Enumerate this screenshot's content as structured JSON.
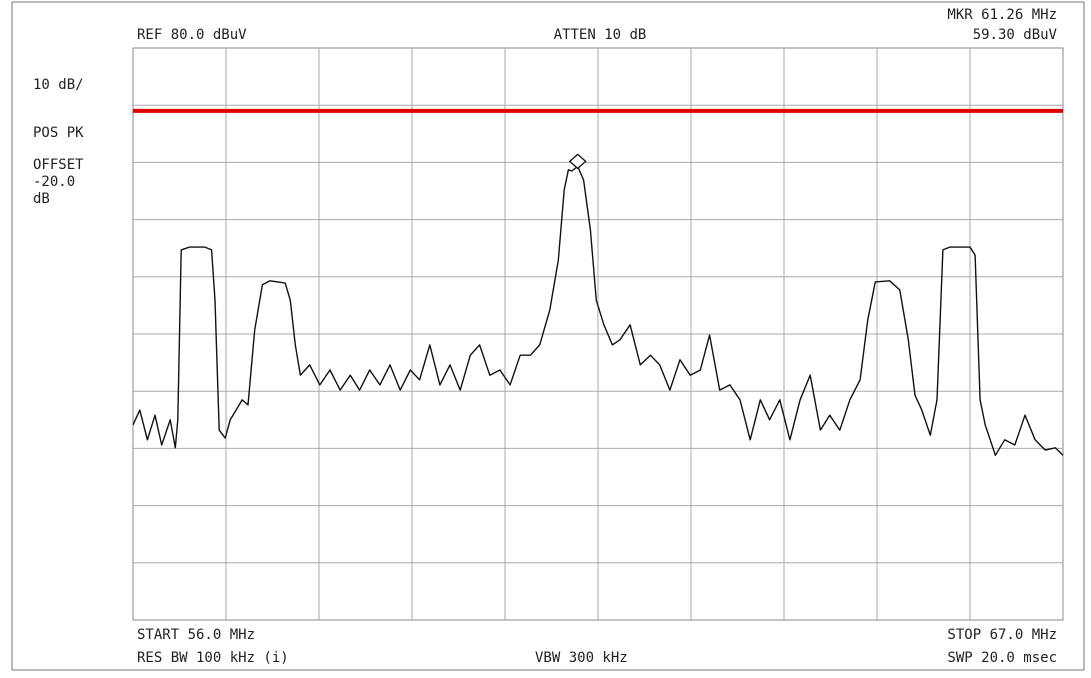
{
  "chart_data": {
    "type": "line",
    "ref_text": "REF  80.0 dBuV",
    "atten_text": "ATTEN 10 dB",
    "marker_freq_text": "MKR 61.26 MHz",
    "marker_level_text": "59.30 dBuV",
    "scale_text": "10 dB/",
    "detector_text": "POS PK",
    "offset_texts": [
      "OFFSET",
      "-20.0",
      "dB"
    ],
    "start_text": "START 56.0 MHz",
    "stop_text": "STOP 67.0 MHz",
    "rbw_text": "RES BW 100 kHz (i)",
    "vbw_text": "VBW 300 kHz",
    "sweep_text": "SWP 20.0 msec",
    "xlim": [
      56,
      67
    ],
    "ylim": [
      -20,
      80
    ],
    "xgrid": [
      57.1,
      58.2,
      59.3,
      60.4,
      61.5,
      62.6,
      63.7,
      64.8,
      65.9
    ],
    "ygrid": [
      -10,
      0,
      10,
      20,
      30,
      40,
      50,
      60,
      70
    ],
    "color": "#111111",
    "x": [
      56.0,
      56.08,
      56.17,
      56.26,
      56.34,
      56.44,
      56.5,
      56.53,
      56.57,
      56.67,
      56.85,
      56.93,
      56.97,
      57.02,
      57.09,
      57.15,
      57.22,
      57.29,
      57.36,
      57.44,
      57.53,
      57.62,
      57.8,
      57.86,
      57.92,
      57.98,
      58.09,
      58.21,
      58.33,
      58.45,
      58.57,
      58.68,
      58.8,
      58.92,
      59.04,
      59.16,
      59.28,
      59.39,
      59.51,
      59.63,
      59.75,
      59.87,
      59.99,
      60.1,
      60.22,
      60.34,
      60.46,
      60.58,
      60.7,
      60.81,
      60.93,
      61.03,
      61.1,
      61.15,
      61.19,
      61.26,
      61.33,
      61.41,
      61.48,
      61.57,
      61.67,
      61.76,
      61.88,
      62.0,
      62.12,
      62.23,
      62.35,
      62.47,
      62.59,
      62.71,
      62.82,
      62.94,
      63.06,
      63.18,
      63.3,
      63.42,
      63.53,
      63.65,
      63.77,
      63.89,
      64.01,
      64.13,
      64.24,
      64.36,
      64.48,
      64.6,
      64.69,
      64.78,
      64.95,
      65.07,
      65.17,
      65.25,
      65.33,
      65.43,
      65.51,
      65.58,
      65.66,
      65.9,
      65.96,
      66.02,
      66.08,
      66.2,
      66.31,
      66.43,
      66.55,
      66.67,
      66.79,
      66.91,
      67.0
    ],
    "values": [
      14.1,
      16.7,
      11.5,
      15.8,
      10.6,
      15.0,
      10.1,
      15.0,
      44.7,
      45.2,
      45.2,
      44.7,
      35.9,
      13.2,
      11.8,
      15.0,
      16.7,
      18.5,
      17.6,
      30.7,
      38.6,
      39.3,
      38.9,
      35.9,
      28.1,
      22.8,
      24.6,
      21.1,
      23.7,
      20.2,
      22.8,
      20.2,
      23.7,
      21.1,
      24.6,
      20.2,
      23.7,
      22.0,
      28.1,
      21.1,
      24.6,
      20.2,
      26.3,
      28.1,
      22.8,
      23.7,
      21.1,
      26.3,
      26.3,
      28.1,
      34.2,
      42.9,
      55.2,
      58.7,
      58.5,
      59.3,
      56.9,
      48.2,
      35.9,
      31.6,
      28.1,
      29.0,
      31.6,
      24.6,
      26.3,
      24.6,
      20.2,
      25.5,
      22.8,
      23.7,
      29.8,
      20.2,
      21.1,
      18.5,
      11.5,
      18.5,
      15.0,
      18.5,
      11.5,
      18.5,
      22.8,
      13.2,
      15.8,
      13.2,
      18.5,
      22.0,
      32.4,
      39.1,
      39.3,
      37.7,
      29.0,
      19.3,
      16.7,
      12.3,
      18.5,
      44.7,
      45.2,
      45.2,
      43.8,
      18.5,
      14.1,
      8.8,
      11.5,
      10.6,
      15.8,
      11.5,
      9.7,
      10.1,
      8.8
    ],
    "marker": {
      "x": 61.26,
      "y": 59.3
    },
    "limit_line": {
      "value": 69,
      "color": "#e00000"
    }
  }
}
